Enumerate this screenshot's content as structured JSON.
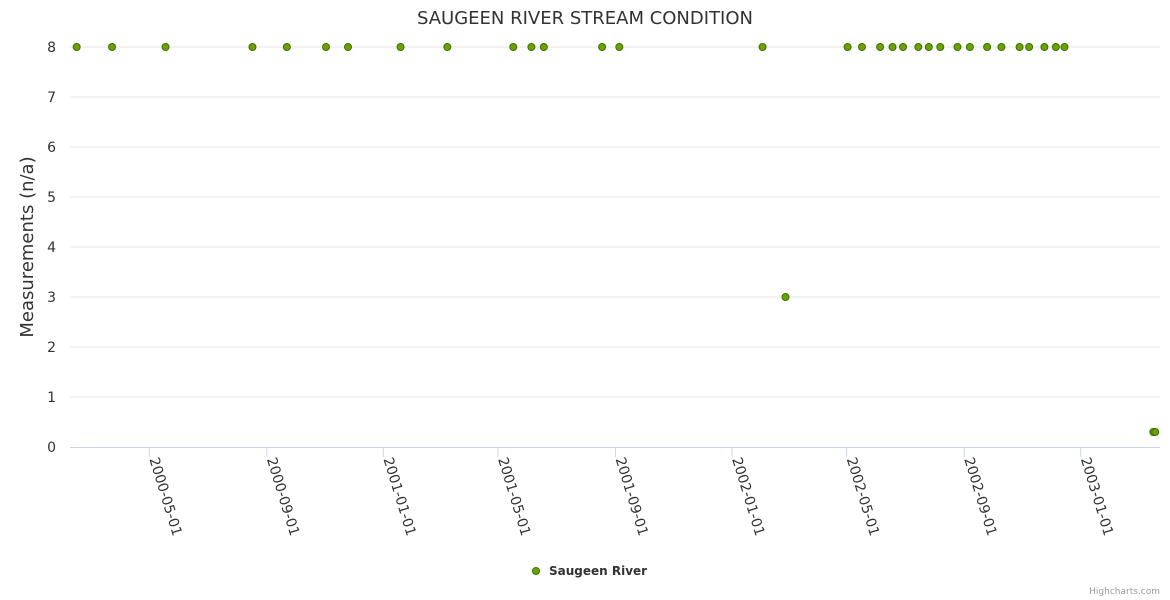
{
  "credits": "Highcharts.com",
  "colors": {
    "marker_fill": "#6aa300",
    "marker_stroke": "#3d6e00",
    "grid": "#e6e6e6",
    "axis": "#ccd6eb"
  },
  "chart_data": {
    "type": "scatter",
    "title": "SAUGEEN RIVER STREAM CONDITION",
    "xlabel": "",
    "ylabel": "Measurements (n/a)",
    "ylim": [
      0,
      8
    ],
    "yticks": [
      "0",
      "1",
      "2",
      "3",
      "4",
      "5",
      "6",
      "7",
      "8"
    ],
    "xlim": [
      "2000-02-08",
      "2003-03-25"
    ],
    "xticks": [
      "2000-05-01",
      "2000-09-01",
      "2001-01-01",
      "2001-05-01",
      "2001-09-01",
      "2002-01-01",
      "2002-05-01",
      "2002-09-01",
      "2003-01-01"
    ],
    "legend": "bottom-center",
    "series": [
      {
        "name": "Saugeen River",
        "x": [
          "2000-02-15",
          "2000-03-23",
          "2000-05-18",
          "2000-08-17",
          "2000-09-22",
          "2000-11-02",
          "2000-11-25",
          "2001-01-19",
          "2001-03-09",
          "2001-05-17",
          "2001-06-05",
          "2001-06-18",
          "2001-08-18",
          "2001-09-05",
          "2002-02-02",
          "2002-02-26",
          "2002-05-02",
          "2002-05-17",
          "2002-06-05",
          "2002-06-18",
          "2002-06-29",
          "2002-07-15",
          "2002-07-26",
          "2002-08-07",
          "2002-08-25",
          "2002-09-07",
          "2002-09-25",
          "2002-10-10",
          "2002-10-29",
          "2002-11-08",
          "2002-11-24",
          "2002-12-06",
          "2002-12-15",
          "2003-03-18",
          "2003-03-20"
        ],
        "values": [
          8,
          8,
          8,
          8,
          8,
          8,
          8,
          8,
          8,
          8,
          8,
          8,
          8,
          8,
          8,
          3,
          8,
          8,
          8,
          8,
          8,
          8,
          8,
          8,
          8,
          8,
          8,
          8,
          8,
          8,
          8,
          8,
          8,
          0.3,
          0.3
        ]
      }
    ]
  }
}
